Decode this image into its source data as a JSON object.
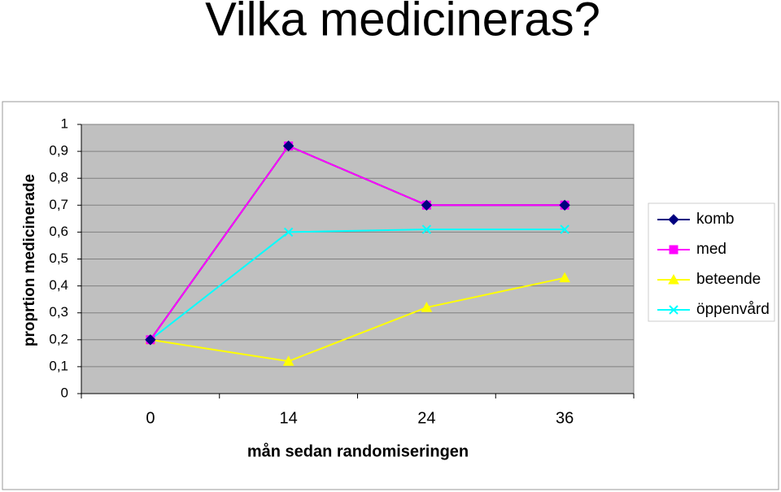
{
  "chart_data": {
    "type": "line",
    "title": "Vilka medicineras?",
    "xlabel": "mån sedan randomiseringen",
    "ylabel": "proprtion medicinerade",
    "categories": [
      "0",
      "14",
      "24",
      "36"
    ],
    "series": [
      {
        "name": "komb",
        "color": "#000080",
        "marker": "diamond",
        "values": [
          0.2,
          0.92,
          0.7,
          0.7
        ]
      },
      {
        "name": "med",
        "color": "#ff00ff",
        "marker": "square",
        "values": [
          0.2,
          0.92,
          0.7,
          0.7
        ]
      },
      {
        "name": "beteende",
        "color": "#ffff00",
        "marker": "triangle",
        "values": [
          0.2,
          0.12,
          0.32,
          0.43
        ]
      },
      {
        "name": "öppenvård",
        "color": "#00ffff",
        "marker": "x",
        "values": [
          0.2,
          0.6,
          0.61,
          0.61
        ]
      }
    ],
    "ylim": [
      0,
      1
    ],
    "yticks": [
      0,
      {
        "value": 0.1,
        "label": "0,1"
      },
      {
        "value": 0.2,
        "label": "0,2"
      },
      {
        "value": 0.3,
        "label": "0,3"
      },
      {
        "value": 0.4,
        "label": "0,4"
      },
      {
        "value": 0.5,
        "label": "0,5"
      },
      {
        "value": 0.6,
        "label": "0,6"
      },
      {
        "value": 0.7,
        "label": "0,7"
      },
      {
        "value": 0.8,
        "label": "0,8"
      },
      {
        "value": 0.9,
        "label": "0,9"
      },
      1
    ],
    "grid": true,
    "legend": "right"
  }
}
